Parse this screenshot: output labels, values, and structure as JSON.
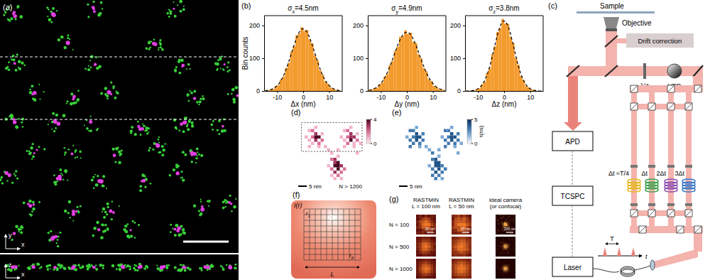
{
  "chart_data": [
    {
      "type": "histogram",
      "title": "σx=4.5nm",
      "x_label": "Δx (nm)",
      "y_label": "Bin counts",
      "bins": [
        -15,
        -14,
        -13,
        -12,
        -11,
        -10,
        -9,
        -8,
        -7,
        -6,
        -5,
        -4,
        -3,
        -2,
        -1,
        0,
        1,
        2,
        3,
        4,
        5,
        6,
        7,
        8,
        9,
        10,
        11,
        12,
        13,
        14,
        15
      ],
      "counts": [
        2,
        1,
        5,
        6,
        15,
        18,
        35,
        44,
        70,
        86,
        120,
        136,
        170,
        176,
        195,
        184,
        186,
        158,
        145,
        110,
        94,
        63,
        50,
        29,
        22,
        11,
        8,
        3,
        3,
        0
      ],
      "fit": {
        "values": [
          1,
          2,
          4,
          7,
          13,
          20,
          32,
          47,
          67,
          90,
          115,
          140,
          163,
          180,
          189,
          189,
          180,
          163,
          140,
          115,
          90,
          67,
          47,
          32,
          20,
          13,
          7,
          4,
          2,
          1
        ],
        "color": "#000000",
        "line_style": "dashed"
      },
      "color": "#f39a2c",
      "xlim": [
        -15,
        15
      ],
      "ylim": [
        0,
        230
      ],
      "xticks": [
        -10,
        0,
        10
      ],
      "yticks": [
        0,
        100,
        200
      ]
    },
    {
      "type": "histogram",
      "title": "σy=4.9nm",
      "x_label": "Δy (nm)",
      "bins": [
        -15,
        -14,
        -13,
        -12,
        -11,
        -10,
        -9,
        -8,
        -7,
        -6,
        -5,
        -4,
        -3,
        -2,
        -1,
        0,
        1,
        2,
        3,
        4,
        5,
        6,
        7,
        8,
        9,
        10,
        11,
        12,
        13,
        14,
        15
      ],
      "counts": [
        3,
        3,
        9,
        10,
        20,
        25,
        43,
        52,
        79,
        92,
        122,
        135,
        165,
        168,
        185,
        174,
        178,
        150,
        146,
        112,
        100,
        70,
        60,
        36,
        30,
        15,
        12,
        5,
        5,
        1
      ],
      "fit": {
        "values": [
          2,
          4,
          7,
          11,
          18,
          28,
          40,
          56,
          75,
          96,
          118,
          140,
          158,
          172,
          179,
          179,
          172,
          158,
          140,
          118,
          96,
          75,
          56,
          40,
          28,
          18,
          11,
          7,
          4,
          2
        ],
        "color": "#000000",
        "line_style": "dashed"
      },
      "color": "#f39a2c",
      "xlim": [
        -15,
        15
      ],
      "ylim": [
        0,
        230
      ],
      "xticks": [
        -10,
        0,
        10
      ],
      "yticks": [
        0,
        100,
        200
      ]
    },
    {
      "type": "histogram",
      "title": "σz=3.8nm",
      "x_label": "Δz (nm)",
      "bins": [
        -15,
        -14,
        -13,
        -12,
        -11,
        -10,
        -9,
        -8,
        -7,
        -6,
        -5,
        -4,
        -3,
        -2,
        -1,
        0,
        1,
        2,
        3,
        4,
        5,
        6,
        7,
        8,
        9,
        10,
        11,
        12,
        13,
        14,
        15
      ],
      "counts": [
        1,
        0,
        2,
        1,
        6,
        8,
        20,
        28,
        55,
        70,
        112,
        136,
        180,
        192,
        220,
        206,
        205,
        166,
        147,
        101,
        80,
        46,
        34,
        15,
        11,
        4,
        3,
        0,
        1,
        0
      ],
      "fit": {
        "values": [
          0,
          0,
          1,
          2,
          5,
          9,
          18,
          31,
          50,
          75,
          107,
          141,
          173,
          199,
          213,
          213,
          199,
          173,
          141,
          107,
          75,
          50,
          31,
          18,
          9,
          5,
          2,
          1,
          0,
          0
        ],
        "color": "#000000",
        "line_style": "dashed"
      },
      "color": "#f39a2c",
      "xlim": [
        -15,
        15
      ],
      "ylim": [
        0,
        230
      ],
      "xticks": [
        -10,
        0,
        10
      ],
      "yticks": [
        0,
        100,
        200
      ]
    }
  ],
  "figure": {
    "a": {
      "label": "(a)",
      "xy_axes": {
        "vertical": "y",
        "horizontal": "x"
      },
      "xz_axes": {
        "vertical": "z",
        "horizontal": "x"
      }
    },
    "b": {
      "label": "(b)"
    },
    "c": {
      "label": "(c)",
      "texts": {
        "sample": "Sample",
        "objective": "Objective",
        "drift": "Drift correction",
        "qwp": "λ/4",
        "vpp": "VPP",
        "apd": "APD",
        "tcspc": "TCSPC",
        "laser": "Laser",
        "delay0": "Δt ≈T/4",
        "delay1": "Δt",
        "delay2": "2Δt",
        "delay3": "3Δt",
        "period": "T",
        "time": "t"
      }
    },
    "d": {
      "label": "(d)",
      "scale_bar": "5 nm",
      "count_text": "N > 1200",
      "colorbar": {
        "range": [
          0,
          4
        ],
        "ticks": [
          0,
          4
        ]
      },
      "cells": [
        [
          3,
          3,
          1
        ],
        [
          4,
          3,
          2
        ],
        [
          5,
          4,
          3
        ],
        [
          4,
          5,
          2
        ],
        [
          6,
          5,
          4
        ],
        [
          3,
          6,
          1
        ],
        [
          5,
          6,
          3
        ],
        [
          7,
          6,
          2
        ],
        [
          4,
          7,
          1
        ],
        [
          6,
          7,
          2
        ],
        [
          2,
          5,
          1
        ],
        [
          5,
          2,
          1
        ],
        [
          7,
          4,
          1
        ],
        [
          6,
          8,
          1
        ],
        [
          3,
          8,
          1
        ],
        [
          5,
          5,
          4
        ],
        [
          14,
          3,
          1
        ],
        [
          15,
          3,
          2
        ],
        [
          16,
          4,
          3
        ],
        [
          15,
          5,
          2
        ],
        [
          17,
          5,
          3
        ],
        [
          14,
          6,
          1
        ],
        [
          16,
          6,
          4
        ],
        [
          18,
          6,
          2
        ],
        [
          15,
          7,
          2
        ],
        [
          17,
          7,
          1
        ],
        [
          13,
          5,
          1
        ],
        [
          16,
          2,
          1
        ],
        [
          18,
          4,
          1
        ],
        [
          17,
          8,
          1
        ],
        [
          14,
          8,
          1
        ],
        [
          19,
          7,
          1
        ],
        [
          16,
          5,
          3
        ],
        [
          10,
          12,
          2
        ],
        [
          11,
          12,
          3
        ],
        [
          12,
          13,
          4
        ],
        [
          11,
          14,
          4
        ],
        [
          13,
          14,
          3
        ],
        [
          10,
          15,
          2
        ],
        [
          12,
          15,
          4
        ],
        [
          14,
          15,
          2
        ],
        [
          11,
          16,
          3
        ],
        [
          13,
          16,
          2
        ],
        [
          9,
          14,
          1
        ],
        [
          12,
          11,
          1
        ],
        [
          10,
          17,
          1
        ],
        [
          12,
          17,
          2
        ],
        [
          13,
          18,
          1
        ],
        [
          11,
          18,
          1
        ],
        [
          12,
          14,
          4
        ],
        [
          11,
          13,
          3
        ],
        [
          9,
          9,
          1
        ],
        [
          10,
          10,
          1
        ],
        [
          8,
          8,
          1
        ],
        [
          12,
          9,
          1
        ],
        [
          18,
          10,
          1
        ]
      ]
    },
    "e": {
      "label": "(e)",
      "scale_bar": "5 nm",
      "colorbar": {
        "label": "τ(ns)",
        "range": [
          0,
          5
        ],
        "ticks": [
          0,
          5
        ]
      },
      "cells": [
        [
          3,
          3,
          3
        ],
        [
          4,
          3,
          3
        ],
        [
          5,
          4,
          4
        ],
        [
          4,
          5,
          3
        ],
        [
          6,
          5,
          4
        ],
        [
          3,
          6,
          3
        ],
        [
          5,
          6,
          4
        ],
        [
          7,
          6,
          3
        ],
        [
          4,
          7,
          3
        ],
        [
          6,
          7,
          3
        ],
        [
          2,
          5,
          2
        ],
        [
          5,
          2,
          2
        ],
        [
          7,
          4,
          3
        ],
        [
          6,
          8,
          2
        ],
        [
          3,
          8,
          3
        ],
        [
          5,
          5,
          4
        ],
        [
          14,
          3,
          3
        ],
        [
          15,
          3,
          3
        ],
        [
          16,
          4,
          4
        ],
        [
          15,
          5,
          3
        ],
        [
          17,
          5,
          4
        ],
        [
          14,
          6,
          3
        ],
        [
          16,
          6,
          4
        ],
        [
          18,
          6,
          3
        ],
        [
          15,
          7,
          3
        ],
        [
          17,
          7,
          3
        ],
        [
          13,
          5,
          2
        ],
        [
          16,
          2,
          2
        ],
        [
          18,
          4,
          3
        ],
        [
          17,
          8,
          2
        ],
        [
          14,
          8,
          3
        ],
        [
          19,
          7,
          2
        ],
        [
          16,
          5,
          4
        ],
        [
          10,
          12,
          3
        ],
        [
          11,
          12,
          4
        ],
        [
          12,
          13,
          4
        ],
        [
          11,
          14,
          4
        ],
        [
          13,
          14,
          3
        ],
        [
          10,
          15,
          3
        ],
        [
          12,
          15,
          4
        ],
        [
          14,
          15,
          3
        ],
        [
          11,
          16,
          4
        ],
        [
          13,
          16,
          3
        ],
        [
          9,
          14,
          2
        ],
        [
          12,
          11,
          2
        ],
        [
          10,
          17,
          3
        ],
        [
          12,
          17,
          3
        ],
        [
          13,
          18,
          2
        ],
        [
          11,
          18,
          3
        ],
        [
          12,
          14,
          4
        ],
        [
          11,
          13,
          4
        ],
        [
          9,
          9,
          2
        ],
        [
          10,
          10,
          3
        ],
        [
          8,
          8,
          2
        ],
        [
          12,
          9,
          2
        ],
        [
          18,
          10,
          2
        ]
      ]
    },
    "f": {
      "label": "(f)",
      "texts": {
        "intensity": "I(r)",
        "first": "r1",
        "last": "rK",
        "size": "L"
      }
    },
    "g": {
      "label": "(g)",
      "columns": [
        {
          "title": [
            "RASTMIN",
            "L = 100 nm"
          ],
          "scale_bar": "20 nm"
        },
        {
          "title": [
            "RASTMIN",
            "L = 50 nm"
          ],
          "scale_bar": "10 nm"
        },
        {
          "title": [
            "Ideal camera",
            "(or confocal)"
          ],
          "scale_bar": "200 nm"
        }
      ],
      "rows": [
        "N = 100",
        "N = 500",
        "N = 1000"
      ]
    }
  }
}
